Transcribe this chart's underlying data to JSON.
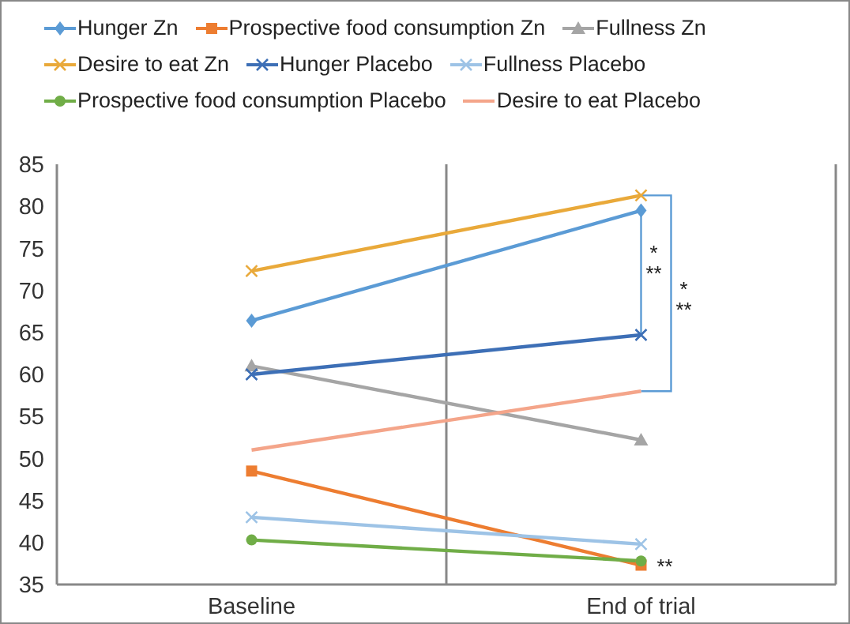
{
  "chart_data": {
    "type": "line",
    "categories": [
      "Baseline",
      "End of trial"
    ],
    "series": [
      {
        "name": "Hunger Zn",
        "color": "#5b9bd5",
        "marker": "diamond",
        "values": [
          66.4,
          79.5
        ]
      },
      {
        "name": "Prospective food consumption Zn",
        "color": "#ed7d31",
        "marker": "square",
        "values": [
          48.5,
          37.3
        ]
      },
      {
        "name": "Fullness Zn",
        "color": "#a5a5a5",
        "marker": "triangle",
        "values": [
          61,
          52.2
        ]
      },
      {
        "name": "Desire to eat Zn",
        "color": "#e9a93a",
        "marker": "cross",
        "values": [
          72.3,
          81.3
        ]
      },
      {
        "name": "Hunger Placebo",
        "color": "#3d6fb6",
        "marker": "cross",
        "values": [
          60,
          64.7
        ]
      },
      {
        "name": "Fullness Placebo",
        "color": "#9dc3e6",
        "marker": "cross",
        "values": [
          43,
          39.8
        ]
      },
      {
        "name": "Prospective food consumption Placebo",
        "color": "#70ad47",
        "marker": "circle",
        "values": [
          40.3,
          37.8
        ]
      },
      {
        "name": "Desire to eat Placebo",
        "color": "#f4a58a",
        "marker": "none",
        "values": [
          51,
          58
        ]
      }
    ],
    "ylim": [
      35,
      85
    ],
    "yticks": [
      35,
      40,
      45,
      50,
      55,
      60,
      65,
      70,
      75,
      80,
      85
    ],
    "grid": "x",
    "legend": "top",
    "annotations": [
      "*",
      "**",
      "*",
      "**",
      {
        "text": "**",
        "x": "End of trial",
        "y": 37.3
      }
    ]
  }
}
